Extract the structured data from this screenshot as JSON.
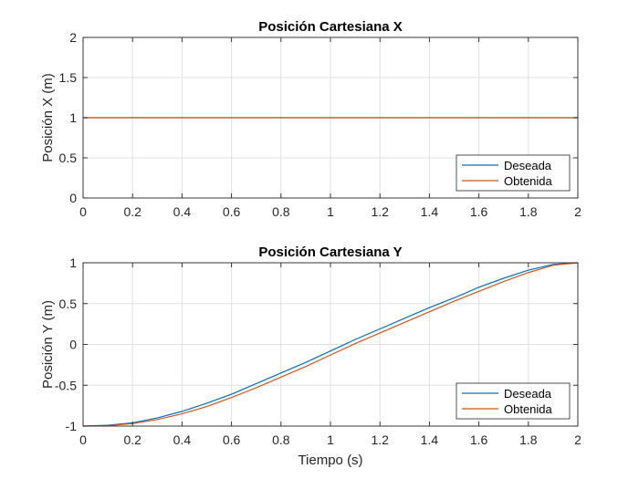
{
  "chart_data": [
    {
      "type": "line",
      "title": "Posición Cartesiana X",
      "xlabel": "",
      "ylabel": "Posición X (m)",
      "xlim": [
        0,
        2
      ],
      "ylim": [
        0,
        2
      ],
      "xticks": [
        "0",
        "0.2",
        "0.4",
        "0.6",
        "0.8",
        "1",
        "1.2",
        "1.4",
        "1.6",
        "1.8",
        "2"
      ],
      "yticks": [
        "0",
        "0.5",
        "1",
        "1.5",
        "2"
      ],
      "grid": true,
      "legend_position": "bottom-right",
      "x": [
        0,
        0.2,
        0.4,
        0.6,
        0.8,
        1.0,
        1.2,
        1.4,
        1.6,
        1.8,
        2.0
      ],
      "series": [
        {
          "name": "Deseada",
          "color": "#0072bd",
          "values": [
            1,
            1,
            1,
            1,
            1,
            1,
            1,
            1,
            1,
            1,
            1
          ]
        },
        {
          "name": "Obtenida",
          "color": "#d95319",
          "values": [
            1,
            1,
            1,
            1,
            1,
            1,
            1,
            1,
            1,
            1,
            1
          ]
        }
      ]
    },
    {
      "type": "line",
      "title": "Posición Cartesiana Y",
      "xlabel": "Tiempo (s)",
      "ylabel": "Posición Y (m)",
      "xlim": [
        0,
        2
      ],
      "ylim": [
        -1,
        1
      ],
      "xticks": [
        "0",
        "0.2",
        "0.4",
        "0.6",
        "0.8",
        "1",
        "1.2",
        "1.4",
        "1.6",
        "1.8",
        "2"
      ],
      "yticks": [
        "-1",
        "-0.5",
        "0",
        "0.5",
        "1"
      ],
      "grid": true,
      "legend_position": "bottom-right",
      "x": [
        0,
        0.1,
        0.2,
        0.3,
        0.4,
        0.5,
        0.6,
        0.7,
        0.8,
        0.9,
        1.0,
        1.1,
        1.2,
        1.3,
        1.4,
        1.5,
        1.6,
        1.7,
        1.8,
        1.9,
        2.0
      ],
      "series": [
        {
          "name": "Deseada",
          "color": "#0072bd",
          "values": [
            -1,
            -0.99,
            -0.96,
            -0.9,
            -0.82,
            -0.72,
            -0.61,
            -0.48,
            -0.35,
            -0.22,
            -0.08,
            0.06,
            0.19,
            0.32,
            0.45,
            0.57,
            0.7,
            0.81,
            0.91,
            0.98,
            1.0
          ]
        },
        {
          "name": "Obtenida",
          "color": "#d95319",
          "values": [
            -1,
            -0.995,
            -0.97,
            -0.92,
            -0.85,
            -0.76,
            -0.65,
            -0.53,
            -0.4,
            -0.27,
            -0.13,
            0.01,
            0.14,
            0.27,
            0.4,
            0.53,
            0.65,
            0.77,
            0.88,
            0.97,
            1.0
          ]
        }
      ]
    }
  ]
}
